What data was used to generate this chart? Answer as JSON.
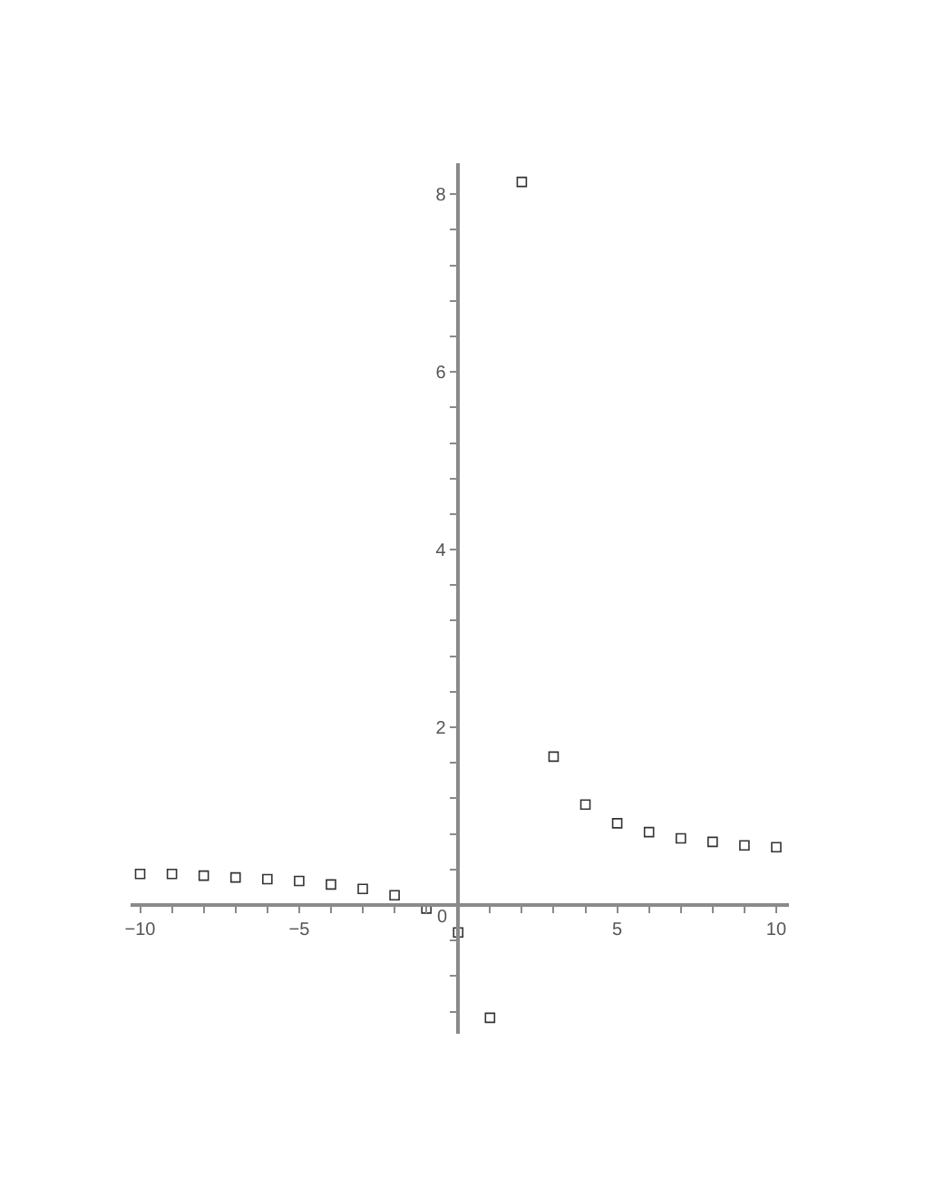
{
  "chart_data": {
    "type": "scatter",
    "marker": "square",
    "color": "#333333",
    "x": [
      -10,
      -9,
      -8,
      -7,
      -6,
      -5,
      -4,
      -3,
      -2,
      -1,
      0,
      1,
      2,
      3,
      4,
      5,
      6,
      7,
      8,
      9,
      10
    ],
    "values": [
      0.35,
      0.35,
      0.33,
      0.31,
      0.29,
      0.27,
      0.23,
      0.18,
      0.11,
      -0.04,
      -0.31,
      -1.27,
      8.14,
      1.67,
      1.13,
      0.92,
      0.82,
      0.75,
      0.71,
      0.67,
      0.65
    ],
    "xlim": [
      -10.3,
      10.4
    ],
    "ylim": [
      -1.45,
      8.35
    ],
    "xticks": [
      -10,
      {
        "value": -9,
        "label": null
      },
      {
        "value": -8,
        "label": null
      },
      {
        "value": -7,
        "label": null
      },
      {
        "value": -6,
        "label": null
      },
      -5,
      {
        "value": -4,
        "label": null
      },
      {
        "value": -3,
        "label": null
      },
      {
        "value": -2,
        "label": null
      },
      {
        "value": -1,
        "label": null
      },
      {
        "value": 1,
        "label": null
      },
      {
        "value": 2,
        "label": null
      },
      {
        "value": 3,
        "label": null
      },
      {
        "value": 4,
        "label": null
      },
      5,
      {
        "value": 6,
        "label": null
      },
      {
        "value": 7,
        "label": null
      },
      {
        "value": 8,
        "label": null
      },
      {
        "value": 9,
        "label": null
      },
      10
    ],
    "yticks": [
      {
        "value": -1.2,
        "label": null
      },
      {
        "value": -0.8,
        "label": null
      },
      {
        "value": -0.4,
        "label": null
      },
      0,
      {
        "value": 0.4,
        "label": null
      },
      {
        "value": 0.8,
        "label": null
      },
      {
        "value": 1.2,
        "label": null
      },
      {
        "value": 1.6,
        "label": null
      },
      2,
      {
        "value": 2.4,
        "label": null
      },
      {
        "value": 2.8,
        "label": null
      },
      {
        "value": 3.2,
        "label": null
      },
      {
        "value": 3.6,
        "label": null
      },
      4,
      {
        "value": 4.4,
        "label": null
      },
      {
        "value": 4.8,
        "label": null
      },
      {
        "value": 5.2,
        "label": null
      },
      {
        "value": 5.6,
        "label": null
      },
      6,
      {
        "value": 6.4,
        "label": null
      },
      {
        "value": 6.8,
        "label": null
      },
      {
        "value": 7.2,
        "label": null
      },
      {
        "value": 7.6,
        "label": null
      },
      8
    ]
  }
}
